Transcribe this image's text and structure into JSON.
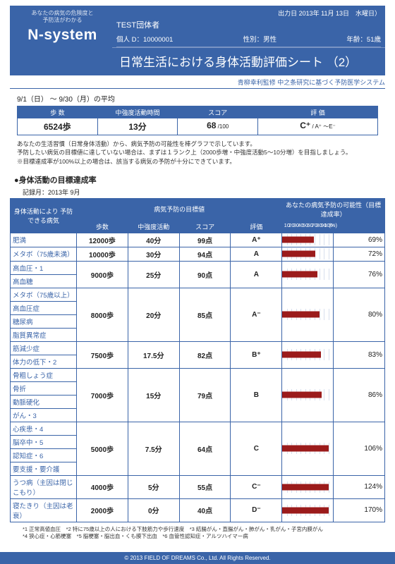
{
  "header": {
    "tagline1": "あなたの病気の危険度と",
    "tagline2": "予防法がわかる",
    "logo": "N-system",
    "out_date": "出力日 2013年 11月 13日　水曜日）",
    "org": "TEST団体者",
    "id_label": "個人 D：10000001",
    "sex": "性別：男性",
    "age": "年齢：51歳"
  },
  "title": "日常生活における身体活動評価シート （2）",
  "subtitle": "青柳幸利監修 中之条研究に基づく予防医学システム",
  "period": "9/1（日） ～ 9/30（月）の平均",
  "summary": {
    "cols": [
      {
        "label": "歩 数",
        "value": "6524歩"
      },
      {
        "label": "中強度活動時間",
        "value": "13分"
      },
      {
        "label": "スコア",
        "value": "68",
        "sub": " /100"
      },
      {
        "label": "評 価",
        "value": "C⁺",
        "sub": " / A⁺ ～E⁻"
      }
    ]
  },
  "explain": {
    "l1": "あなたの生活習慣（日常身体活動）から、病気予防の可能性を棒グラフで示しています。",
    "l2": "予防したい病気の目標値に達していない場合は、まずは１ランク上（2000歩増・中強度活動5～10分増）を目指しましょう。",
    "l3": "※目標達成率が100%以上の場合は、該当する病気の予防が十分にできています。"
  },
  "section_h": "●身体活動の目標達成率",
  "rec_month": "記録月：2013年 9月",
  "thead": {
    "group_col": "身体活動により\n予防できる病気",
    "target_group": "病気予防の目標値",
    "possibility_group": "あなたの病気予防の可能性（目標達成率）",
    "steps": "歩数",
    "min": "中強度活動",
    "score": "スコア",
    "grade": "評価"
  },
  "ticks": [
    "10",
    "20",
    "30",
    "40",
    "50",
    "60",
    "70",
    "80",
    "90",
    "100",
    "(%)"
  ],
  "groups": [
    {
      "diseases": [
        "肥満"
      ],
      "steps": "12000歩",
      "min": "40分",
      "score": "99点",
      "grade": "A⁺",
      "bar": 69,
      "pct": "69%"
    },
    {
      "diseases": [
        "メタボ（75歳未満）"
      ],
      "steps": "10000歩",
      "min": "30分",
      "score": "94点",
      "grade": "A",
      "bar": 72,
      "pct": "72%"
    },
    {
      "diseases": [
        "高血圧・1",
        "高血糖"
      ],
      "steps": "9000歩",
      "min": "25分",
      "score": "90点",
      "grade": "A",
      "bar": 76,
      "pct": "76%"
    },
    {
      "diseases": [
        "メタボ（75歳以上）",
        "高血圧症",
        "糖尿病",
        "脂質異常症"
      ],
      "steps": "8000歩",
      "min": "20分",
      "score": "85点",
      "grade": "A⁻",
      "bar": 80,
      "pct": "80%"
    },
    {
      "diseases": [
        "筋減少症",
        "体力の低下・2"
      ],
      "steps": "7500歩",
      "min": "17.5分",
      "score": "82点",
      "grade": "B⁺",
      "bar": 83,
      "pct": "83%"
    },
    {
      "diseases": [
        "骨粗しょう症",
        "骨折",
        "動脈硬化",
        "がん・3"
      ],
      "steps": "7000歩",
      "min": "15分",
      "score": "79点",
      "grade": "B",
      "bar": 86,
      "pct": "86%"
    },
    {
      "diseases": [
        "心疾患・4",
        "脳卒中・5",
        "認知症・6",
        "要支援・要介護"
      ],
      "steps": "5000歩",
      "min": "7.5分",
      "score": "64点",
      "grade": "C",
      "bar": 100,
      "pct": "106%"
    },
    {
      "diseases": [
        "うつ病（主因は閉じこもり）"
      ],
      "steps": "4000歩",
      "min": "5分",
      "score": "55点",
      "grade": "C⁻",
      "bar": 100,
      "pct": "124%"
    },
    {
      "diseases": [
        "寝たきり（主因は老衰）"
      ],
      "steps": "2000歩",
      "min": "0分",
      "score": "40点",
      "grade": "D⁻",
      "bar": 100,
      "pct": "170%"
    }
  ],
  "footnotes": {
    "l1": "*1 正常高値血圧　*2 特に75歳以上の人における下肢筋力や歩行速度　*3 結腸がん・直腸がん・肺がん・乳がん・子宮内膜がん",
    "l2": "*4 狭心症・心筋梗塞　*5 脳梗塞・脳出血・くも膜下出血　*6 血管性認知症・アルツハイマー病"
  },
  "copyright": "© 2013 FIELD OF DREAMS Co., Ltd. All Rights Reserved.",
  "colors": {
    "primary": "#3a64a8",
    "bar": "#9b1b1b"
  }
}
